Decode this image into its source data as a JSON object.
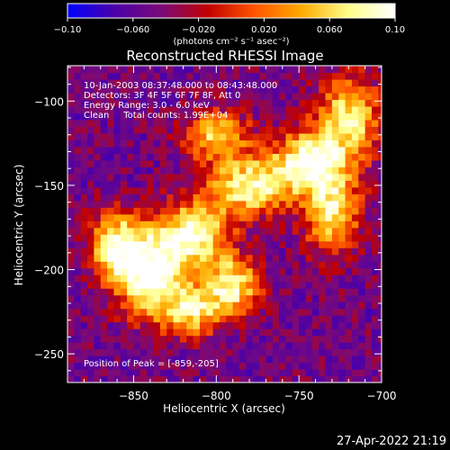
{
  "chart_data": {
    "type": "heatmap",
    "title": "Reconstructed RHESSI Image",
    "xlabel": "Heliocentric X (arcsec)",
    "ylabel": "Heliocentric Y (arcsec)",
    "xlim": [
      -890,
      -700
    ],
    "ylim": [
      -267,
      -79
    ],
    "x_ticks": [
      -850,
      -800,
      -750,
      -700
    ],
    "y_ticks": [
      -100,
      -150,
      -200,
      -250
    ],
    "colorbar": {
      "min": -0.1,
      "max": 0.1,
      "ticks": [
        {
          "value": -0.1,
          "label": "-0.10"
        },
        {
          "value": -0.06,
          "label": "-0.060"
        },
        {
          "value": -0.02,
          "label": "-0.020"
        },
        {
          "value": 0.02,
          "label": "0.020"
        },
        {
          "value": 0.06,
          "label": "0.060"
        },
        {
          "value": 0.1,
          "label": "0.10"
        }
      ],
      "units_label": "(photons cm⁻² s⁻¹ asec⁻²)",
      "colors": [
        "#0000ff",
        "#4b00a8",
        "#7a0a7a",
        "#c00000",
        "#ff5500",
        "#ffaa00",
        "#ffff88",
        "#ffffff"
      ]
    },
    "annotations": [
      "10-Jan-2003 08:37:48.000 to 08:43:48.000",
      "Detectors: 3F 4F 5F 6F 7F 8F, Att 0",
      "Energy Range: 3.0 - 6.0 keV",
      "Clean     Total counts: 1.99E+04"
    ],
    "peak": {
      "x": -859,
      "y": -205,
      "label": "Position of Peak = [-859,-205]"
    },
    "emission_components": [
      {
        "x": -840,
        "y": -205,
        "peak": 0.1,
        "sx": 14,
        "sy": 16
      },
      {
        "x": -815,
        "y": -180,
        "peak": 0.09,
        "sx": 16,
        "sy": 14
      },
      {
        "x": -780,
        "y": -150,
        "peak": 0.085,
        "sx": 18,
        "sy": 12
      },
      {
        "x": -745,
        "y": -135,
        "peak": 0.085,
        "sx": 14,
        "sy": 12
      },
      {
        "x": -720,
        "y": -110,
        "peak": 0.07,
        "sx": 14,
        "sy": 18
      },
      {
        "x": -800,
        "y": -120,
        "peak": 0.06,
        "sx": 14,
        "sy": 10
      },
      {
        "x": -730,
        "y": -165,
        "peak": 0.07,
        "sx": 12,
        "sy": 18
      },
      {
        "x": -790,
        "y": -210,
        "peak": 0.08,
        "sx": 12,
        "sy": 12
      },
      {
        "x": -860,
        "y": -185,
        "peak": 0.08,
        "sx": 12,
        "sy": 14
      },
      {
        "x": -815,
        "y": -225,
        "peak": 0.06,
        "sx": 12,
        "sy": 10
      }
    ],
    "background_level": -0.05
  },
  "footer": {
    "date": "27-Apr-2022 21:19"
  }
}
